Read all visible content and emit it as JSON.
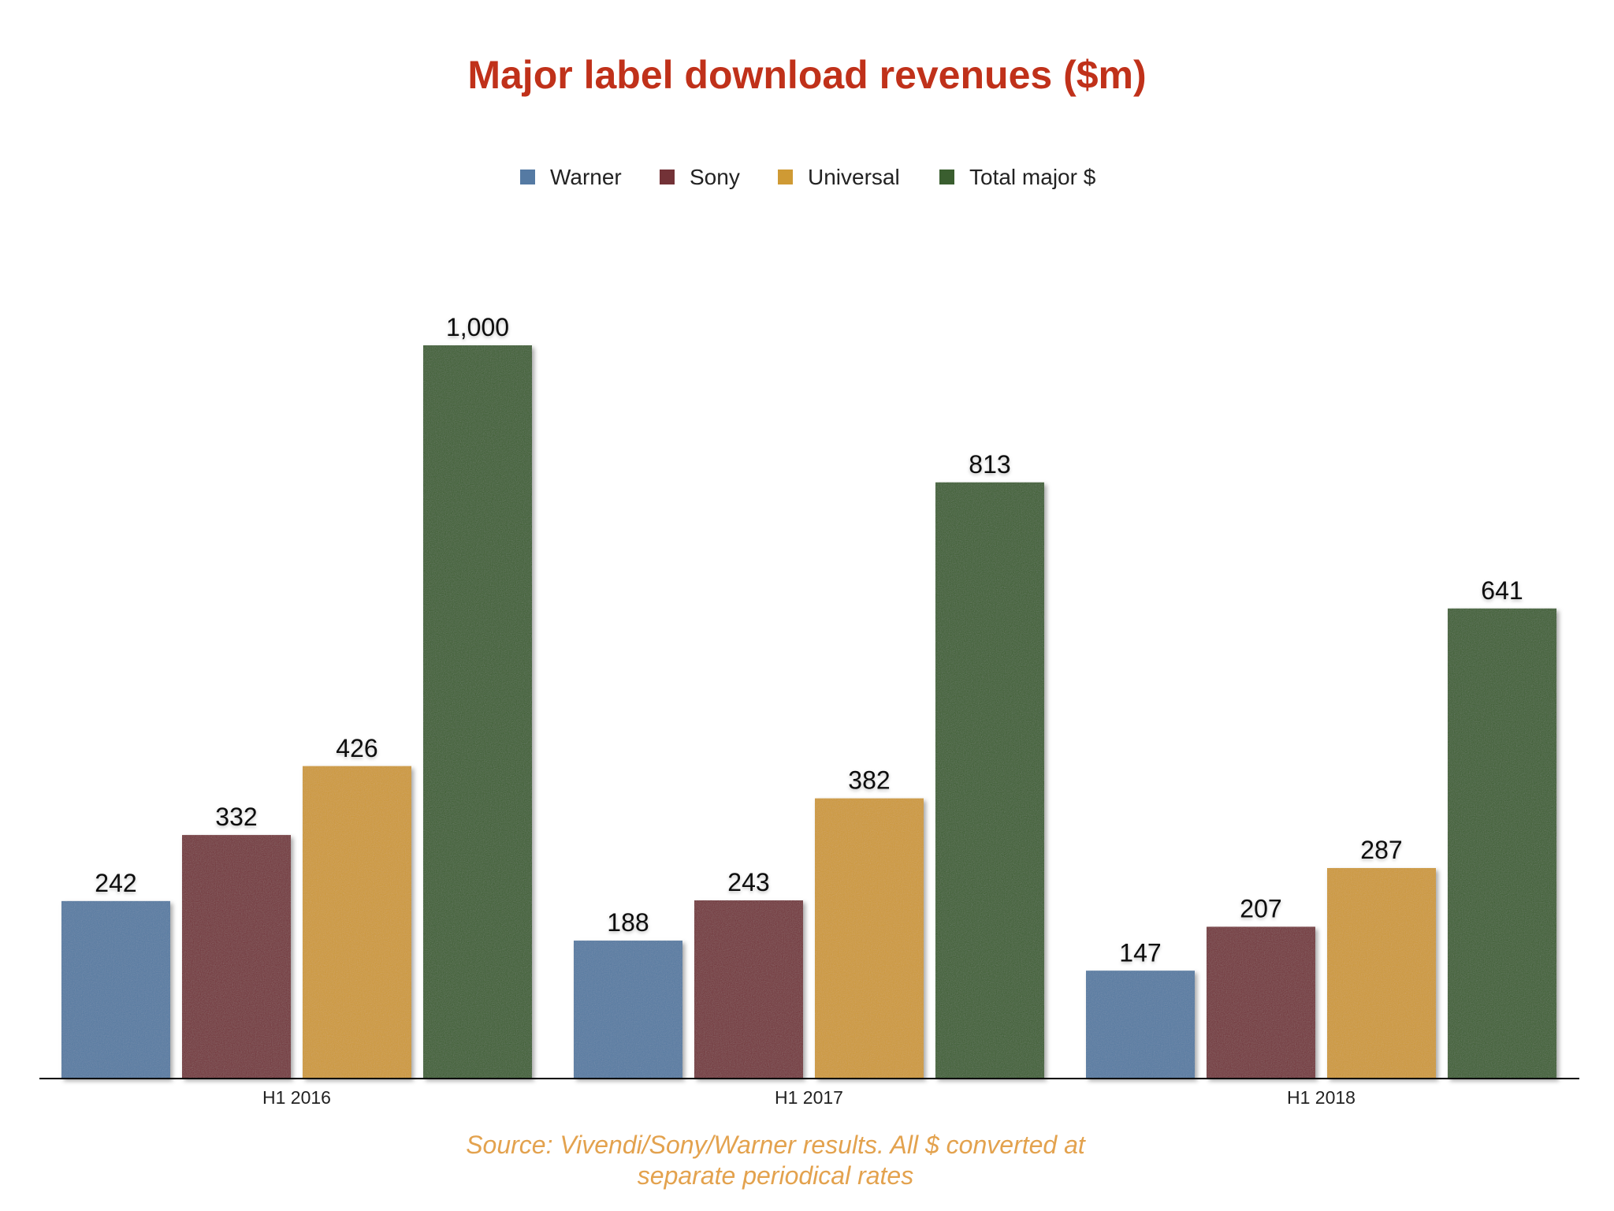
{
  "chart_data": {
    "type": "bar",
    "title": "Major label download revenues ($m)",
    "categories": [
      "H1 2016",
      "H1 2017",
      "H1 2018"
    ],
    "series": [
      {
        "name": "Warner",
        "values": [
          242,
          188,
          147
        ],
        "color": "#557aa3"
      },
      {
        "name": "Sony",
        "values": [
          332,
          243,
          207
        ],
        "color": "#733237"
      },
      {
        "name": "Universal",
        "values": [
          426,
          382,
          287
        ],
        "color": "#cf9a34"
      },
      {
        "name": "Total major $",
        "values": [
          1000,
          813,
          641
        ],
        "color": "#3a5e2f"
      }
    ],
    "value_labels": [
      [
        "242",
        "188",
        "147"
      ],
      [
        "332",
        "243",
        "207"
      ],
      [
        "426",
        "382",
        "287"
      ],
      [
        "1,000",
        "813",
        "641"
      ]
    ],
    "ylim": [
      0,
      1000
    ],
    "grid": false,
    "legend_position": "top-center",
    "note_lines": [
      "Source: Vivendi/Sony/Warner results. All $ converted at",
      "separate periodical rates"
    ]
  },
  "colors": {
    "title": "#c0311a",
    "note": "#e3a24e",
    "axis": "#000000"
  }
}
